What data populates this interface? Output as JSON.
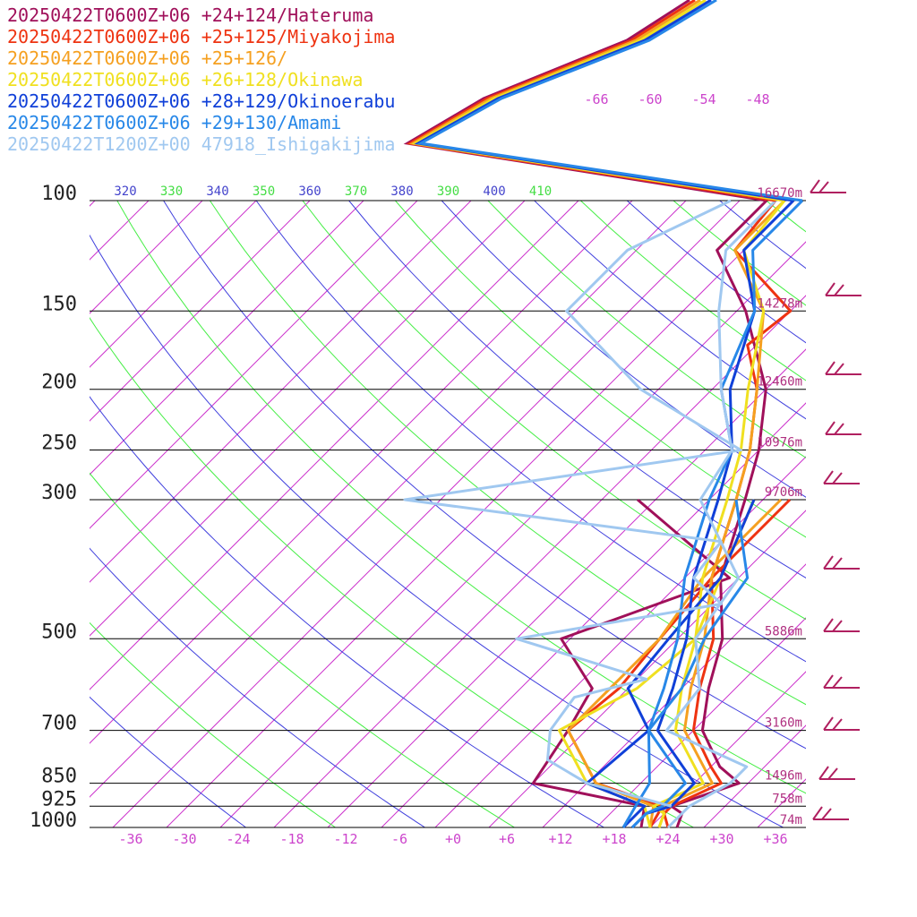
{
  "chart_data": {
    "type": "line",
    "title": "",
    "xlabel": "",
    "ylabel": "",
    "x_ticks": [
      "-36",
      "-30",
      "-24",
      "-18",
      "-12",
      "-6",
      "+0",
      "+6",
      "+12",
      "+18",
      "+24",
      "+30",
      "+36"
    ],
    "x_tick_values": [
      -36,
      -30,
      -24,
      -18,
      -12,
      -6,
      0,
      6,
      12,
      18,
      24,
      30,
      36
    ],
    "xlim": [
      -40,
      40
    ],
    "pressure_ticks": [
      {
        "p": 100,
        "label": "100",
        "height": "16670m"
      },
      {
        "p": 150,
        "label": "150",
        "height": "14278m"
      },
      {
        "p": 200,
        "label": "200",
        "height": "12460m"
      },
      {
        "p": 250,
        "label": "250",
        "height": "10976m"
      },
      {
        "p": 300,
        "label": "300",
        "height": "9706m"
      },
      {
        "p": 500,
        "label": "500",
        "height": "5886m"
      },
      {
        "p": 700,
        "label": "700",
        "height": "3160m"
      },
      {
        "p": 850,
        "label": "850",
        "height": "1496m"
      },
      {
        "p": 925,
        "label": "925",
        "height": "758m"
      },
      {
        "p": 1000,
        "label": "1000",
        "height": "74m"
      }
    ],
    "ylim": [
      100,
      1000
    ],
    "y_scale": "log",
    "isotherm_labels": [
      "-66",
      "-60",
      "-54",
      "-48"
    ],
    "theta_labels": [
      {
        "text": "320",
        "kind": "dry"
      },
      {
        "text": "330",
        "kind": "moist"
      },
      {
        "text": "340",
        "kind": "dry"
      },
      {
        "text": "350",
        "kind": "moist"
      },
      {
        "text": "360",
        "kind": "dry"
      },
      {
        "text": "370",
        "kind": "moist"
      },
      {
        "text": "380",
        "kind": "dry"
      },
      {
        "text": "390",
        "kind": "moist"
      },
      {
        "text": "400",
        "kind": "dry"
      },
      {
        "text": "410",
        "kind": "moist"
      }
    ],
    "series": [
      {
        "name": "20250422T0600Z+06 +24+124/Hateruma",
        "color": "#a0105a",
        "temp": [
          [
            1000,
            25
          ],
          [
            950,
            24
          ],
          [
            925,
            22
          ],
          [
            850,
            27
          ],
          [
            800,
            23
          ],
          [
            700,
            17
          ],
          [
            600,
            13
          ],
          [
            500,
            9
          ],
          [
            400,
            2
          ],
          [
            300,
            -4
          ],
          [
            250,
            -8
          ],
          [
            200,
            -14
          ],
          [
            150,
            -25
          ],
          [
            120,
            -35
          ],
          [
            100,
            -35
          ]
        ],
        "dew": [
          [
            1000,
            21
          ],
          [
            925,
            19
          ],
          [
            850,
            4
          ],
          [
            700,
            2
          ],
          [
            600,
            0
          ],
          [
            500,
            -9
          ],
          [
            400,
            3
          ],
          [
            300,
            -16
          ]
        ]
      },
      {
        "name": "20250422T0600Z+06 +25+125/Miyakojima",
        "color": "#ee3311",
        "temp": [
          [
            1000,
            24
          ],
          [
            950,
            22
          ],
          [
            925,
            22
          ],
          [
            850,
            25
          ],
          [
            800,
            22
          ],
          [
            700,
            16
          ],
          [
            600,
            12
          ],
          [
            500,
            8
          ],
          [
            400,
            1
          ],
          [
            300,
            -5
          ],
          [
            250,
            -9
          ],
          [
            200,
            -15
          ],
          [
            170,
            -21
          ],
          [
            150,
            -20
          ],
          [
            120,
            -33
          ],
          [
            100,
            -34
          ]
        ],
        "dew": [
          [
            1000,
            22
          ],
          [
            925,
            21
          ],
          [
            850,
            11
          ],
          [
            700,
            2
          ],
          [
            600,
            3
          ],
          [
            500,
            2
          ],
          [
            400,
            1
          ],
          [
            300,
            1
          ]
        ]
      },
      {
        "name": "20250422T0600Z+06 +25+126/",
        "color": "#f5a020",
        "temp": [
          [
            1000,
            23
          ],
          [
            950,
            22
          ],
          [
            925,
            21
          ],
          [
            850,
            24
          ],
          [
            700,
            15
          ],
          [
            600,
            11
          ],
          [
            500,
            7
          ],
          [
            400,
            1
          ],
          [
            300,
            -5
          ],
          [
            250,
            -9
          ],
          [
            200,
            -15
          ],
          [
            150,
            -23
          ],
          [
            120,
            -33
          ],
          [
            100,
            -33
          ]
        ],
        "dew": [
          [
            1000,
            22
          ],
          [
            925,
            20
          ],
          [
            850,
            11
          ],
          [
            700,
            2
          ],
          [
            600,
            2
          ],
          [
            500,
            2
          ],
          [
            400,
            0
          ],
          [
            300,
            0
          ]
        ]
      },
      {
        "name": "20250422T0600Z+06 +26+128/Okinawa",
        "color": "#f0e020",
        "temp": [
          [
            1000,
            23
          ],
          [
            950,
            22
          ],
          [
            925,
            20
          ],
          [
            850,
            23
          ],
          [
            700,
            14
          ],
          [
            600,
            10
          ],
          [
            500,
            6
          ],
          [
            400,
            0
          ],
          [
            300,
            -6
          ],
          [
            250,
            -10
          ],
          [
            200,
            -16
          ],
          [
            150,
            -23
          ],
          [
            120,
            -32
          ],
          [
            100,
            -33
          ]
        ],
        "dew": [
          [
            1000,
            22
          ],
          [
            925,
            19
          ],
          [
            850,
            10
          ],
          [
            700,
            1
          ],
          [
            600,
            5
          ],
          [
            500,
            6
          ],
          [
            400,
            2
          ],
          [
            300,
            -3
          ]
        ]
      },
      {
        "name": "20250422T0600Z+06 +28+129/Okinoerabu",
        "color": "#1040d8",
        "temp": [
          [
            1000,
            20
          ],
          [
            950,
            20
          ],
          [
            925,
            22
          ],
          [
            850,
            22
          ],
          [
            700,
            12
          ],
          [
            600,
            9
          ],
          [
            500,
            5
          ],
          [
            400,
            -1
          ],
          [
            300,
            -7
          ],
          [
            250,
            -11
          ],
          [
            200,
            -18
          ],
          [
            150,
            -24
          ],
          [
            120,
            -32
          ],
          [
            100,
            -32
          ]
        ],
        "dew": [
          [
            1000,
            19
          ],
          [
            925,
            19
          ],
          [
            850,
            10
          ],
          [
            700,
            11
          ],
          [
            600,
            4
          ],
          [
            500,
            3
          ],
          [
            400,
            2
          ],
          [
            300,
            -3
          ]
        ]
      },
      {
        "name": "20250422T0600Z+06 +29+130/Amami",
        "color": "#2888e8",
        "temp": [
          [
            1000,
            20
          ],
          [
            950,
            20
          ],
          [
            925,
            21
          ],
          [
            850,
            21
          ],
          [
            700,
            11
          ],
          [
            600,
            8
          ],
          [
            500,
            4
          ],
          [
            400,
            -2
          ],
          [
            300,
            -8
          ],
          [
            250,
            -11
          ],
          [
            200,
            -19
          ],
          [
            150,
            -24
          ],
          [
            120,
            -31
          ],
          [
            100,
            -31
          ]
        ],
        "dew": [
          [
            1000,
            19
          ],
          [
            925,
            18
          ],
          [
            850,
            17
          ],
          [
            700,
            11
          ],
          [
            600,
            10
          ],
          [
            500,
            7
          ],
          [
            400,
            5
          ],
          [
            300,
            -5
          ]
        ]
      },
      {
        "name": "20250422T1200Z+00 47918_Ishigakijima",
        "color": "#a0c8f0",
        "temp": [
          [
            1000,
            24
          ],
          [
            925,
            24
          ],
          [
            850,
            26
          ],
          [
            800,
            26
          ],
          [
            700,
            13
          ],
          [
            600,
            12
          ],
          [
            500,
            6
          ],
          [
            400,
            4
          ],
          [
            300,
            -9
          ],
          [
            250,
            -11
          ],
          [
            200,
            -19
          ],
          [
            150,
            -28
          ],
          [
            120,
            -34
          ],
          [
            100,
            -34
          ]
        ],
        "dew": [
          [
            925,
            22
          ],
          [
            850,
            10
          ],
          [
            780,
            3
          ],
          [
            700,
            0
          ],
          [
            620,
            -1
          ],
          [
            580,
            5
          ],
          [
            500,
            -14
          ],
          [
            440,
            5
          ],
          [
            400,
            -1
          ],
          [
            350,
            -2
          ],
          [
            300,
            -42
          ],
          [
            250,
            -10
          ],
          [
            200,
            -28
          ],
          [
            150,
            -45
          ],
          [
            120,
            -45
          ],
          [
            100,
            -39
          ]
        ]
      }
    ]
  }
}
